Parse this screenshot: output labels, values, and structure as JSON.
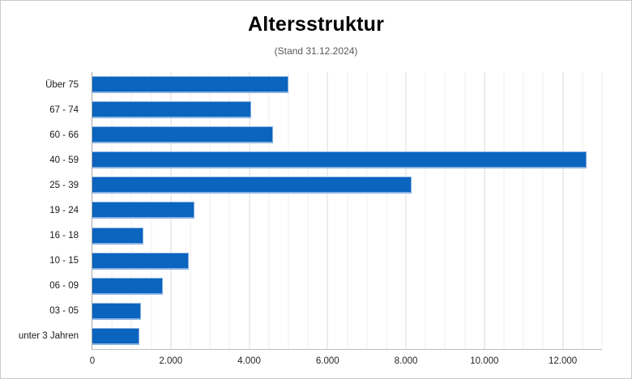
{
  "page": {
    "background_color": "#ffffff",
    "frame_border_color": "#c9c9c9"
  },
  "chart_data": {
    "type": "bar",
    "orientation": "horizontal",
    "title": "Altersstruktur",
    "subtitle": "(Stand 31.12.2024)",
    "categories": [
      "Über 75",
      "67 - 74",
      "60 - 66",
      "40 - 59",
      "25 - 39",
      "19 - 24",
      "16 - 18",
      "10 - 15",
      "06 - 09",
      "03 - 05",
      "unter 3 Jahren"
    ],
    "values": [
      5000,
      4050,
      4600,
      12600,
      8150,
      2600,
      1300,
      2450,
      1800,
      1250,
      1200
    ],
    "xlabel": "",
    "ylabel": "",
    "xlim": [
      0,
      13000
    ],
    "x_ticks": [
      0,
      2000,
      4000,
      6000,
      8000,
      10000,
      12000
    ],
    "x_tick_labels": [
      "0",
      "2.000",
      "4.000",
      "6.000",
      "8.000",
      "10.000",
      "12.000"
    ],
    "minor_grid_step": 500,
    "major_grid_step": 2000,
    "grid": true,
    "legend": false,
    "bar_color": "#0b64be",
    "bar_highlight_color": "#8ab4e2",
    "axis_line_color": "#a6a6a6",
    "title_color": "#000000",
    "subtitle_color": "#595959"
  }
}
